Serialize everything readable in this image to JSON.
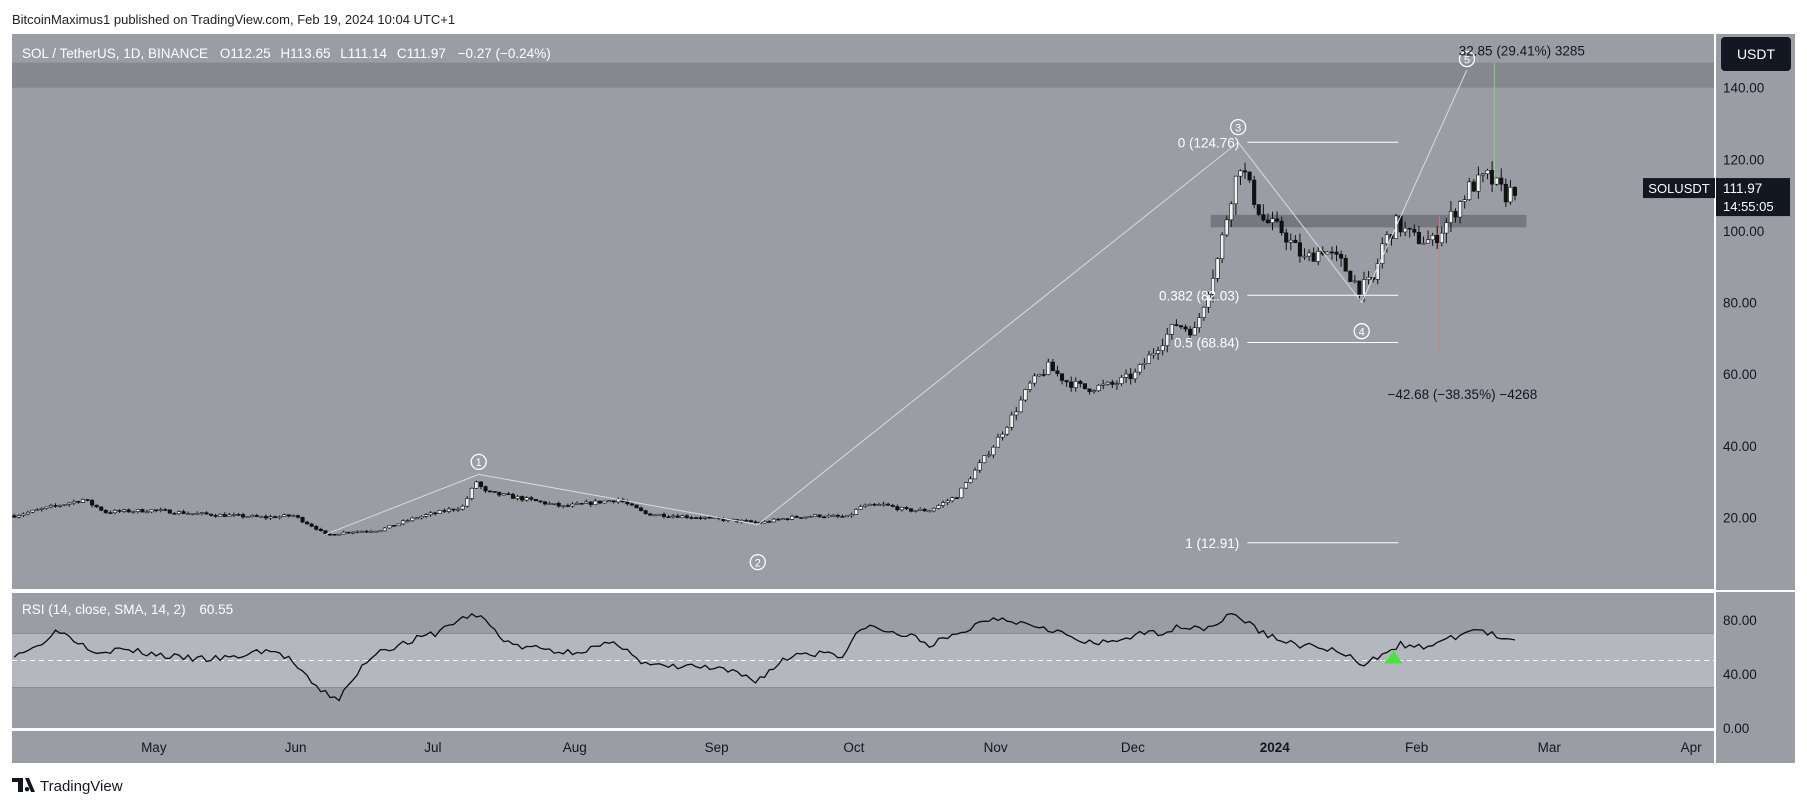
{
  "header": {
    "publisher": "BitcoinMaximus1 published on TradingView.com, Feb 19, 2024 10:04 UTC+1"
  },
  "footer": {
    "brand": "TradingView"
  },
  "legend": {
    "symbol": "SOL / TetherUS, 1D, BINANCE",
    "open_label": "O",
    "open": "112.25",
    "high_label": "H",
    "high": "113.65",
    "low_label": "L",
    "low": "111.14",
    "close_label": "C",
    "close": "111.97",
    "change": "−0.27 (−0.24%)"
  },
  "currency_badge": "USDT",
  "price_tag": {
    "symbol": "SOLUSDT",
    "price": "111.97",
    "countdown": "14:55:05"
  },
  "rsi_legend": {
    "label": "RSI (14, close, SMA, 14, 2)",
    "value": "60.55"
  },
  "colors": {
    "background": "#9a9da4",
    "band": "#85888f",
    "rsi_band": "#b4b7bd",
    "candle": "#111111",
    "guide": "#d8dadd",
    "fib_line": "#ffffff",
    "rsi_line": "#0c0c0c",
    "triangle": "#46e53c",
    "axis_text": "#131722",
    "tag_bg": "#131722"
  },
  "chart_data": {
    "type": "candlestick",
    "symbol": "SOL / TetherUS",
    "interval": "1D",
    "exchange": "BINANCE",
    "ylim": [
      0,
      155
    ],
    "yticks": [
      140,
      120,
      100,
      80,
      60,
      40,
      20
    ],
    "ytick_labels": [
      "140.00",
      "120.00",
      "100.00",
      "80.00",
      "60.00",
      "40.00",
      "20.00"
    ],
    "date_start": "2023-03-31",
    "x_end_days": 372,
    "xticks": [
      {
        "label": "May",
        "day": 31
      },
      {
        "label": "Jun",
        "day": 62
      },
      {
        "label": "Jul",
        "day": 92
      },
      {
        "label": "Aug",
        "day": 123
      },
      {
        "label": "Sep",
        "day": 154
      },
      {
        "label": "Oct",
        "day": 184
      },
      {
        "label": "Nov",
        "day": 215
      },
      {
        "label": "Dec",
        "day": 245
      },
      {
        "label": "2024",
        "day": 276,
        "bold": true
      },
      {
        "label": "Feb",
        "day": 307
      },
      {
        "label": "Mar",
        "day": 336
      },
      {
        "label": "Apr",
        "day": 367
      }
    ],
    "anchors": [
      [
        0,
        20.5
      ],
      [
        10,
        23.5
      ],
      [
        15,
        25
      ],
      [
        20,
        21.5
      ],
      [
        30,
        22
      ],
      [
        40,
        21
      ],
      [
        55,
        20
      ],
      [
        61,
        20.5
      ],
      [
        66,
        17
      ],
      [
        68,
        15
      ],
      [
        73,
        16
      ],
      [
        80,
        16.5
      ],
      [
        88,
        20
      ],
      [
        98,
        23
      ],
      [
        101,
        30
      ],
      [
        103,
        27
      ],
      [
        110,
        25.5
      ],
      [
        120,
        23
      ],
      [
        132,
        25
      ],
      [
        138,
        21
      ],
      [
        150,
        20
      ],
      [
        158,
        19
      ],
      [
        163,
        18.5
      ],
      [
        170,
        20
      ],
      [
        176,
        20.5
      ],
      [
        182,
        20
      ],
      [
        185,
        23
      ],
      [
        190,
        23.5
      ],
      [
        195,
        22
      ],
      [
        200,
        22
      ],
      [
        206,
        26
      ],
      [
        210,
        33
      ],
      [
        214,
        40
      ],
      [
        218,
        48
      ],
      [
        222,
        57
      ],
      [
        226,
        62
      ],
      [
        230,
        58
      ],
      [
        234,
        56
      ],
      [
        240,
        57
      ],
      [
        245,
        60
      ],
      [
        250,
        68
      ],
      [
        254,
        74
      ],
      [
        258,
        72
      ],
      [
        263,
        92
      ],
      [
        266,
        110
      ],
      [
        268,
        119
      ],
      [
        270,
        112
      ],
      [
        273,
        103
      ],
      [
        277,
        100
      ],
      [
        282,
        92
      ],
      [
        286,
        95
      ],
      [
        290,
        91
      ],
      [
        294,
        84
      ],
      [
        297,
        86
      ],
      [
        299,
        96
      ],
      [
        302,
        102
      ],
      [
        306,
        98
      ],
      [
        310,
        97
      ],
      [
        314,
        104
      ],
      [
        318,
        112
      ],
      [
        322,
        115
      ],
      [
        326,
        110
      ],
      [
        328,
        111.97
      ]
    ],
    "resistance_zone": [
      140,
      147
    ],
    "support_zone": {
      "day_from": 262,
      "day_to": 331,
      "low": 101,
      "high": 104.5
    },
    "waves": {
      "points": [
        [
          68,
          15
        ],
        [
          102,
          32
        ],
        [
          163,
          18
        ],
        [
          268,
          124.76
        ],
        [
          295,
          80
        ],
        [
          318,
          145
        ]
      ],
      "labels": [
        {
          "text": "1",
          "day": 102,
          "price": 35.5
        },
        {
          "text": "2",
          "day": 163,
          "price": 7.5
        },
        {
          "text": "3",
          "day": 268,
          "price": 129
        },
        {
          "text": "4",
          "day": 295,
          "price": 72
        },
        {
          "text": "5",
          "day": 318,
          "price": 148
        }
      ]
    },
    "fibonacci": [
      {
        "label": "0 (124.76)",
        "price": 124.76
      },
      {
        "label": "0.382 (82.03)",
        "price": 82.03
      },
      {
        "label": "0.5 (68.84)",
        "price": 68.84
      },
      {
        "label": "1 (12.91)",
        "price": 12.91
      }
    ],
    "measurements": [
      {
        "text": "32.85 (29.41%) 3285",
        "day": 330,
        "price": 149
      },
      {
        "text": "−42.68 (−38.35%) −4268",
        "day": 317,
        "price": 53
      }
    ],
    "rsi": {
      "label": "RSI (14, close, SMA, 14, 2)",
      "value": 60.55,
      "period": 14,
      "ylim": [
        0,
        100
      ],
      "overbought": 70,
      "middle": 50,
      "oversold": 30,
      "ytick_labels": [
        "80.00",
        "40.00",
        "0.00"
      ],
      "yticks": [
        80,
        40,
        0
      ],
      "anchors": [
        [
          0,
          55
        ],
        [
          5,
          60
        ],
        [
          8,
          70
        ],
        [
          10,
          72
        ],
        [
          14,
          64
        ],
        [
          18,
          57
        ],
        [
          24,
          58
        ],
        [
          30,
          55
        ],
        [
          36,
          52
        ],
        [
          42,
          51
        ],
        [
          48,
          52
        ],
        [
          55,
          58
        ],
        [
          60,
          52
        ],
        [
          63,
          40
        ],
        [
          66,
          30
        ],
        [
          69,
          24
        ],
        [
          71,
          22
        ],
        [
          74,
          35
        ],
        [
          77,
          50
        ],
        [
          80,
          58
        ],
        [
          84,
          61
        ],
        [
          88,
          66
        ],
        [
          92,
          70
        ],
        [
          96,
          78
        ],
        [
          100,
          84
        ],
        [
          103,
          80
        ],
        [
          106,
          68
        ],
        [
          110,
          60
        ],
        [
          115,
          59
        ],
        [
          120,
          56
        ],
        [
          125,
          58
        ],
        [
          130,
          62
        ],
        [
          134,
          60
        ],
        [
          137,
          48
        ],
        [
          140,
          46
        ],
        [
          144,
          45
        ],
        [
          148,
          46
        ],
        [
          152,
          44
        ],
        [
          156,
          42
        ],
        [
          160,
          38
        ],
        [
          162,
          35
        ],
        [
          165,
          42
        ],
        [
          168,
          50
        ],
        [
          172,
          56
        ],
        [
          175,
          55
        ],
        [
          178,
          57
        ],
        [
          181,
          53
        ],
        [
          184,
          68
        ],
        [
          186,
          76
        ],
        [
          188,
          74
        ],
        [
          192,
          70
        ],
        [
          196,
          68
        ],
        [
          200,
          62
        ],
        [
          204,
          66
        ],
        [
          208,
          72
        ],
        [
          212,
          80
        ],
        [
          216,
          82
        ],
        [
          220,
          78
        ],
        [
          224,
          76
        ],
        [
          228,
          72
        ],
        [
          232,
          65
        ],
        [
          236,
          62
        ],
        [
          240,
          64
        ],
        [
          244,
          68
        ],
        [
          248,
          70
        ],
        [
          252,
          72
        ],
        [
          256,
          76
        ],
        [
          260,
          74
        ],
        [
          263,
          78
        ],
        [
          266,
          84
        ],
        [
          268,
          82
        ],
        [
          272,
          72
        ],
        [
          276,
          66
        ],
        [
          280,
          62
        ],
        [
          284,
          60
        ],
        [
          288,
          58
        ],
        [
          292,
          52
        ],
        [
          294,
          46
        ],
        [
          296,
          48
        ],
        [
          300,
          58
        ],
        [
          303,
          62
        ],
        [
          306,
          59
        ],
        [
          310,
          62
        ],
        [
          314,
          66
        ],
        [
          318,
          72
        ],
        [
          320,
          73
        ],
        [
          323,
          69
        ],
        [
          326,
          64
        ],
        [
          328,
          65
        ]
      ],
      "marker": {
        "day": 302,
        "value": 53,
        "shape": "triangle-up"
      }
    }
  }
}
